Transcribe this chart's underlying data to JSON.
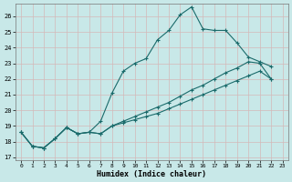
{
  "xlabel": "Humidex (Indice chaleur)",
  "background_color": "#c8e8e8",
  "grid_color": "#aed4d4",
  "line_color": "#1a6b6b",
  "xlim": [
    -0.5,
    23.5
  ],
  "ylim": [
    16.8,
    26.8
  ],
  "yticks": [
    17,
    18,
    19,
    20,
    21,
    22,
    23,
    24,
    25,
    26
  ],
  "xticks": [
    0,
    1,
    2,
    3,
    4,
    5,
    6,
    7,
    8,
    9,
    10,
    11,
    12,
    13,
    14,
    15,
    16,
    17,
    18,
    19,
    20,
    21,
    22,
    23
  ],
  "series": [
    {
      "x": [
        0,
        1,
        2,
        3,
        4,
        5,
        6,
        7,
        8,
        9,
        10,
        11,
        12,
        13,
        14,
        15,
        16,
        17,
        18,
        19,
        20,
        21,
        22
      ],
      "y": [
        18.6,
        17.7,
        17.6,
        18.2,
        18.9,
        18.5,
        18.6,
        19.3,
        21.1,
        22.5,
        23.0,
        23.3,
        24.5,
        25.1,
        26.1,
        26.6,
        25.2,
        25.1,
        25.1,
        24.3,
        23.4,
        23.1,
        22.8
      ]
    },
    {
      "x": [
        0,
        1,
        2,
        3,
        4,
        5,
        6,
        7,
        8,
        9,
        10,
        11,
        12,
        13,
        14,
        15,
        16,
        17,
        18,
        19,
        20,
        21,
        22
      ],
      "y": [
        18.6,
        17.7,
        17.6,
        18.2,
        18.9,
        18.5,
        18.6,
        18.5,
        19.0,
        19.3,
        19.6,
        19.9,
        20.2,
        20.5,
        20.9,
        21.3,
        21.6,
        22.0,
        22.4,
        22.7,
        23.1,
        23.0,
        22.0
      ]
    },
    {
      "x": [
        0,
        1,
        2,
        3,
        4,
        5,
        6,
        7,
        8,
        9,
        10,
        11,
        12,
        13,
        14,
        15,
        16,
        17,
        18,
        19,
        20,
        21,
        22
      ],
      "y": [
        18.6,
        17.7,
        17.6,
        18.2,
        18.9,
        18.5,
        18.6,
        18.5,
        19.0,
        19.2,
        19.4,
        19.6,
        19.8,
        20.1,
        20.4,
        20.7,
        21.0,
        21.3,
        21.6,
        21.9,
        22.2,
        22.5,
        22.0
      ]
    }
  ]
}
